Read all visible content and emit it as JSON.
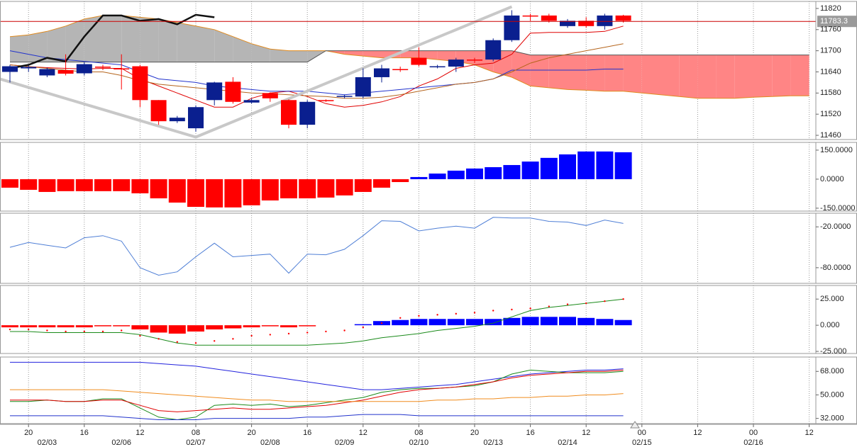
{
  "chart_data": [
    {
      "type": "candlestick",
      "ylim": [
        11448,
        11840
      ],
      "yticks": [
        11460,
        11520,
        11580,
        11640,
        11700,
        11760,
        11820
      ],
      "color_up": "#0a1f8f",
      "color_down": "#ff0000",
      "open": [
        11640,
        11650,
        11630,
        11645,
        11636,
        11655,
        11650,
        11656,
        11560,
        11500,
        11480,
        11560,
        11612,
        11553,
        11580,
        11560,
        11490,
        11560,
        11570,
        11570,
        11625,
        11648,
        11680,
        11655,
        11655,
        11675,
        11675,
        11730,
        11800,
        11800,
        11770,
        11785,
        11770,
        11800
      ],
      "high": [
        11660,
        11658,
        11652,
        11690,
        11668,
        11660,
        11690,
        11660,
        11560,
        11515,
        11545,
        11612,
        11625,
        11565,
        11582,
        11562,
        11560,
        11562,
        11575,
        11650,
        11660,
        11655,
        11710,
        11660,
        11680,
        11680,
        11735,
        11815,
        11805,
        11805,
        11790,
        11795,
        11805,
        11802
      ],
      "low": [
        11610,
        11640,
        11625,
        11630,
        11630,
        11645,
        11590,
        11540,
        11490,
        11495,
        11470,
        11545,
        11550,
        11550,
        11555,
        11480,
        11480,
        11555,
        11565,
        11565,
        11610,
        11640,
        11655,
        11650,
        11640,
        11665,
        11670,
        11725,
        11785,
        11780,
        11765,
        11765,
        11760,
        11780
      ],
      "close": [
        11656,
        11654,
        11648,
        11635,
        11662,
        11652,
        11648,
        11560,
        11500,
        11510,
        11540,
        11610,
        11555,
        11560,
        11565,
        11490,
        11555,
        11557,
        11572,
        11625,
        11650,
        11645,
        11660,
        11656,
        11675,
        11672,
        11730,
        11800,
        11798,
        11785,
        11785,
        11770,
        11800,
        11785
      ],
      "cloud": {
        "span_a": {
          "color": "#e08a1e",
          "values": [
            11740,
            11745,
            11755,
            11770,
            11790,
            11800,
            11800,
            11795,
            11790,
            11780,
            11770,
            11760,
            11740,
            11720,
            11705,
            11700,
            11700,
            11700,
            11690,
            11685,
            11680,
            11680,
            11680,
            11675,
            11670,
            11660,
            11640,
            11625,
            11600,
            11595,
            11590,
            11588,
            11585,
            11585,
            11580,
            11575,
            11570,
            11565,
            11565,
            11565,
            11568,
            11570,
            11572,
            11572
          ]
        },
        "span_b": {
          "color": "#555555",
          "values": [
            11668,
            11668,
            11668,
            11668,
            11668,
            11668,
            11668,
            11668,
            11668,
            11668,
            11668,
            11668,
            11668,
            11668,
            11668,
            11668,
            11668,
            11700,
            11700,
            11700,
            11700,
            11700,
            11700,
            11700,
            11700,
            11700,
            11700,
            11700,
            11688,
            11688,
            11688,
            11688,
            11688,
            11688,
            11688,
            11688,
            11688,
            11688,
            11688,
            11688,
            11688,
            11688,
            11688,
            11688
          ]
        },
        "color_up": "#b5b5b5",
        "color_down": "#ff8585"
      },
      "series": [
        {
          "color": "#e00000",
          "values": [
            11660,
            11655,
            11652,
            11650,
            11648,
            11650,
            11650,
            11620,
            11600,
            11580,
            11560,
            11540,
            11540,
            11565,
            11580,
            11585,
            11570,
            11550,
            11540,
            11545,
            11555,
            11570,
            11600,
            11620,
            11650,
            11660,
            11665,
            11690,
            11750,
            11752,
            11752,
            11752,
            11755,
            11770
          ]
        },
        {
          "color": "#2233cc",
          "values": [
            11700,
            11690,
            11680,
            11675,
            11670,
            11665,
            11660,
            11640,
            11620,
            11615,
            11610,
            11600,
            11595,
            11590,
            11585,
            11585,
            11585,
            11580,
            11575,
            11580,
            11585,
            11590,
            11595,
            11600,
            11605,
            11610,
            11620,
            11645,
            11645,
            11645,
            11645,
            11645,
            11648,
            11648
          ]
        },
        {
          "color": "#b5651d",
          "values": [
            11660,
            11655,
            11650,
            11645,
            11640,
            11640,
            11630,
            11615,
            11605,
            11600,
            11595,
            11590,
            11585,
            11580,
            11578,
            11575,
            11572,
            11570,
            11565,
            11565,
            11568,
            11575,
            11585,
            11595,
            11605,
            11610,
            11620,
            11640,
            11665,
            11680,
            11690,
            11700,
            11710,
            11720
          ]
        },
        {
          "color": "#111111",
          "width": 2.5,
          "values": [
            11650,
            11660,
            11680,
            11670,
            11740,
            11800,
            11800,
            11785,
            11790,
            11775,
            11802,
            11795
          ]
        }
      ],
      "trendline": {
        "color": "#c8c8c8",
        "x": [
          -0.54,
          10,
          27
        ],
        "values": [
          11620,
          11455,
          11825
        ]
      },
      "last_price": 11783.3,
      "last_price_color": "#cc0000"
    },
    {
      "type": "bar",
      "ylim": [
        -165,
        190
      ],
      "yticks": [
        {
          "value": 150,
          "label": "150.0000"
        },
        {
          "value": 0,
          "label": "0.0000"
        },
        {
          "value": -150,
          "label": "-150.0000"
        }
      ],
      "series": [
        {
          "color_up": "#0000ff",
          "color_down": "#ff0000",
          "values": [
            -44,
            -55,
            -66,
            -62,
            -62,
            -62,
            -62,
            -73,
            -99,
            -121,
            -143,
            -146,
            -146,
            -135,
            -110,
            -99,
            -99,
            -95,
            -84,
            -66,
            -44,
            -15,
            11,
            29,
            44,
            55,
            62,
            73,
            91,
            110,
            128,
            143,
            143,
            139
          ]
        }
      ]
    },
    {
      "type": "line",
      "ylim": [
        -103,
        0
      ],
      "yticks": [
        {
          "value": -20,
          "label": "-20.0000"
        },
        {
          "value": -80,
          "label": "-80.0000"
        }
      ],
      "series": [
        {
          "color": "#4f7fd6",
          "values": [
            -50,
            -43,
            -47,
            -51,
            -36,
            -33,
            -41,
            -80,
            -91,
            -86,
            -64,
            -44,
            -64,
            -62,
            -60,
            -88,
            -60,
            -61,
            -53,
            -33,
            -11,
            -12,
            -26,
            -22,
            -19,
            -22,
            -6,
            -7,
            -7,
            -12,
            -13,
            -18,
            -10,
            -15
          ]
        }
      ]
    },
    {
      "type": "bar",
      "ylim": [
        -27,
        38
      ],
      "yticks": [
        {
          "value": 25,
          "label": "25.000"
        },
        {
          "value": 0,
          "label": "0.000"
        },
        {
          "value": -25,
          "label": "-25.000"
        }
      ],
      "series": [
        {
          "color_up": "#0000ff",
          "color_down": "#ff0000",
          "values": [
            -2,
            -2,
            -2,
            -2,
            -2,
            -1,
            -1,
            -4,
            -7,
            -8,
            -6,
            -4,
            -3,
            -2,
            -1,
            -2,
            -1,
            0,
            0,
            1,
            4,
            5,
            6,
            6,
            6,
            6,
            6,
            7,
            8,
            8,
            8,
            7,
            6,
            5
          ]
        },
        {
          "type": "line",
          "color": "#1a8a1a",
          "values": [
            -6,
            -6,
            -7,
            -7,
            -7,
            -7,
            -7,
            -9,
            -13,
            -17,
            -19,
            -19,
            -19,
            -19,
            -19,
            -19,
            -19,
            -18,
            -17,
            -15,
            -12,
            -10,
            -8,
            -5,
            -3,
            -1,
            2,
            8,
            14,
            17,
            19,
            21,
            23,
            25
          ]
        },
        {
          "type": "scatter",
          "color": "#ff0000",
          "values": [
            -4,
            -4,
            -5,
            -6,
            -6,
            -6,
            -5,
            -10,
            -13,
            -16,
            -17,
            -15,
            -13,
            -10,
            -9,
            -8,
            -7,
            -6,
            -5,
            -2,
            2,
            7,
            9,
            10,
            11,
            12,
            14,
            15,
            16,
            18,
            20,
            21,
            23,
            25
          ]
        }
      ]
    },
    {
      "type": "line",
      "ylim": [
        28,
        79
      ],
      "yticks": [
        {
          "value": 68,
          "label": "68.000"
        },
        {
          "value": 50,
          "label": "50.000"
        },
        {
          "value": 32,
          "label": "32.000"
        }
      ],
      "series": [
        {
          "color": "#2222dd",
          "values": [
            75,
            75,
            75,
            75,
            75,
            75,
            75,
            75,
            74,
            73,
            72,
            70,
            68,
            66,
            64,
            62,
            60,
            58,
            56,
            54,
            54,
            55,
            56,
            57,
            58,
            60,
            62,
            64,
            66,
            67,
            68,
            69,
            69,
            70
          ]
        },
        {
          "color": "#1a8a1a",
          "values": [
            45,
            45,
            46,
            45,
            45,
            47,
            47,
            40,
            33,
            31,
            33,
            42,
            43,
            42,
            43,
            41,
            42,
            44,
            46,
            48,
            52,
            54,
            55,
            55,
            56,
            57,
            60,
            66,
            69,
            68,
            67,
            67,
            67,
            68
          ]
        },
        {
          "color": "#e00000",
          "values": [
            46,
            46,
            46,
            45,
            45,
            46,
            46,
            42,
            38,
            37,
            38,
            39,
            40,
            39,
            39,
            40,
            41,
            42,
            44,
            46,
            49,
            52,
            54,
            55,
            56,
            58,
            60,
            63,
            65,
            66,
            67,
            68,
            68,
            69
          ]
        },
        {
          "color": "#f08c1e",
          "values": [
            54,
            54,
            54,
            54,
            54,
            54,
            53,
            52,
            51,
            50,
            49,
            48,
            47,
            46,
            46,
            45,
            45,
            45,
            45,
            45,
            45,
            45,
            45,
            46,
            46,
            47,
            47,
            48,
            48,
            49,
            49,
            50,
            50,
            51
          ]
        },
        {
          "color": "#2233cc",
          "values": [
            34,
            34,
            34,
            34,
            34,
            34,
            33,
            32,
            31,
            31,
            31,
            32,
            32,
            32,
            32,
            32,
            33,
            33,
            34,
            35,
            35,
            35,
            34,
            34,
            34,
            34,
            34,
            34,
            34,
            34,
            34,
            34,
            34,
            34
          ]
        }
      ]
    }
  ],
  "x_axis": {
    "grid": true,
    "ticks": [
      {
        "value": 1,
        "label": "20"
      },
      {
        "value": 4,
        "label": "16"
      },
      {
        "value": 7,
        "label": "12"
      },
      {
        "value": 10,
        "label": "08"
      },
      {
        "value": 13,
        "label": "20"
      },
      {
        "value": 16,
        "label": "16"
      },
      {
        "value": 19,
        "label": "12"
      },
      {
        "value": 22,
        "label": "08"
      },
      {
        "value": 25,
        "label": "20"
      },
      {
        "value": 28,
        "label": "16"
      },
      {
        "value": 31,
        "label": "12"
      },
      {
        "value": 34,
        "label": "00"
      },
      {
        "value": 37,
        "label": "12"
      },
      {
        "value": 40,
        "label": "00"
      },
      {
        "value": 43,
        "label": "12"
      }
    ],
    "dates": [
      {
        "value": 2,
        "label": "02/03"
      },
      {
        "value": 6,
        "label": "02/06"
      },
      {
        "value": 10,
        "label": "02/07"
      },
      {
        "value": 14,
        "label": "02/08"
      },
      {
        "value": 18,
        "label": "02/09"
      },
      {
        "value": 22,
        "label": "02/10"
      },
      {
        "value": 26,
        "label": "02/13"
      },
      {
        "value": 30,
        "label": "02/14"
      },
      {
        "value": 34,
        "label": "02/15"
      },
      {
        "value": 40,
        "label": "02/16"
      }
    ]
  }
}
